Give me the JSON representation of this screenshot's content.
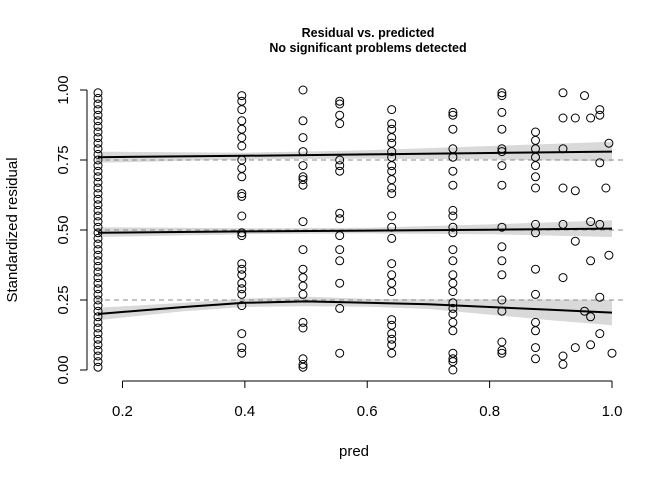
{
  "chart_data": {
    "type": "scatter",
    "title": "Residual vs. predicted",
    "subtitle": "No significant problems detected",
    "xlabel": "pred",
    "ylabel": "Standardized residual",
    "xlim": [
      0.16,
      1.0
    ],
    "ylim": [
      0.0,
      1.0
    ],
    "x_ticks": [
      0.2,
      0.4,
      0.6,
      0.8,
      1.0
    ],
    "x_tick_labels": [
      "0.2",
      "0.4",
      "0.6",
      "0.8",
      "1.0"
    ],
    "y_ticks": [
      0.0,
      0.25,
      0.5,
      0.75,
      1.0
    ],
    "y_tick_labels": [
      "0.00",
      "0.25",
      "0.50",
      "0.75",
      "1.00"
    ],
    "reference_lines": [
      0.25,
      0.5,
      0.75
    ],
    "quantile_fits": [
      {
        "name": "q0.25",
        "x": [
          0.16,
          0.3,
          0.4,
          0.5,
          0.6,
          0.7,
          0.8,
          0.9,
          1.0
        ],
        "y": [
          0.2,
          0.225,
          0.24,
          0.245,
          0.24,
          0.235,
          0.225,
          0.215,
          0.205
        ],
        "lower": [
          0.178,
          0.21,
          0.225,
          0.228,
          0.226,
          0.218,
          0.198,
          0.178,
          0.16
        ],
        "upper": [
          0.222,
          0.24,
          0.255,
          0.262,
          0.254,
          0.252,
          0.252,
          0.252,
          0.25
        ]
      },
      {
        "name": "q0.50",
        "x": [
          0.16,
          0.4,
          0.6,
          0.8,
          1.0
        ],
        "y": [
          0.49,
          0.495,
          0.498,
          0.501,
          0.505
        ],
        "lower": [
          0.475,
          0.485,
          0.488,
          0.485,
          0.475
        ],
        "upper": [
          0.51,
          0.506,
          0.508,
          0.52,
          0.535
        ]
      },
      {
        "name": "q0.75",
        "x": [
          0.16,
          0.4,
          0.6,
          0.8,
          1.0
        ],
        "y": [
          0.76,
          0.765,
          0.77,
          0.775,
          0.78
        ],
        "lower": [
          0.74,
          0.752,
          0.755,
          0.752,
          0.745
        ],
        "upper": [
          0.78,
          0.776,
          0.785,
          0.8,
          0.815
        ]
      }
    ],
    "points": [
      {
        "x": 0.16,
        "y": 0.99
      },
      {
        "x": 0.16,
        "y": 0.97
      },
      {
        "x": 0.16,
        "y": 0.95
      },
      {
        "x": 0.16,
        "y": 0.93
      },
      {
        "x": 0.16,
        "y": 0.91
      },
      {
        "x": 0.16,
        "y": 0.89
      },
      {
        "x": 0.16,
        "y": 0.87
      },
      {
        "x": 0.16,
        "y": 0.85
      },
      {
        "x": 0.16,
        "y": 0.83
      },
      {
        "x": 0.16,
        "y": 0.81
      },
      {
        "x": 0.16,
        "y": 0.79
      },
      {
        "x": 0.16,
        "y": 0.77
      },
      {
        "x": 0.16,
        "y": 0.75
      },
      {
        "x": 0.16,
        "y": 0.73
      },
      {
        "x": 0.16,
        "y": 0.71
      },
      {
        "x": 0.16,
        "y": 0.69
      },
      {
        "x": 0.16,
        "y": 0.67
      },
      {
        "x": 0.16,
        "y": 0.65
      },
      {
        "x": 0.16,
        "y": 0.63
      },
      {
        "x": 0.16,
        "y": 0.61
      },
      {
        "x": 0.16,
        "y": 0.59
      },
      {
        "x": 0.16,
        "y": 0.57
      },
      {
        "x": 0.16,
        "y": 0.55
      },
      {
        "x": 0.16,
        "y": 0.53
      },
      {
        "x": 0.16,
        "y": 0.51
      },
      {
        "x": 0.16,
        "y": 0.49
      },
      {
        "x": 0.16,
        "y": 0.47
      },
      {
        "x": 0.16,
        "y": 0.45
      },
      {
        "x": 0.16,
        "y": 0.43
      },
      {
        "x": 0.16,
        "y": 0.41
      },
      {
        "x": 0.16,
        "y": 0.39
      },
      {
        "x": 0.16,
        "y": 0.37
      },
      {
        "x": 0.16,
        "y": 0.35
      },
      {
        "x": 0.16,
        "y": 0.33
      },
      {
        "x": 0.16,
        "y": 0.31
      },
      {
        "x": 0.16,
        "y": 0.29
      },
      {
        "x": 0.16,
        "y": 0.27
      },
      {
        "x": 0.16,
        "y": 0.25
      },
      {
        "x": 0.16,
        "y": 0.23
      },
      {
        "x": 0.16,
        "y": 0.21
      },
      {
        "x": 0.16,
        "y": 0.19
      },
      {
        "x": 0.16,
        "y": 0.17
      },
      {
        "x": 0.16,
        "y": 0.15
      },
      {
        "x": 0.16,
        "y": 0.13
      },
      {
        "x": 0.16,
        "y": 0.11
      },
      {
        "x": 0.16,
        "y": 0.09
      },
      {
        "x": 0.16,
        "y": 0.07
      },
      {
        "x": 0.16,
        "y": 0.05
      },
      {
        "x": 0.16,
        "y": 0.03
      },
      {
        "x": 0.16,
        "y": 0.01
      },
      {
        "x": 0.395,
        "y": 0.98
      },
      {
        "x": 0.395,
        "y": 0.96
      },
      {
        "x": 0.395,
        "y": 0.93
      },
      {
        "x": 0.395,
        "y": 0.89
      },
      {
        "x": 0.395,
        "y": 0.86
      },
      {
        "x": 0.395,
        "y": 0.83
      },
      {
        "x": 0.395,
        "y": 0.8
      },
      {
        "x": 0.395,
        "y": 0.75
      },
      {
        "x": 0.395,
        "y": 0.72
      },
      {
        "x": 0.395,
        "y": 0.69
      },
      {
        "x": 0.395,
        "y": 0.63
      },
      {
        "x": 0.395,
        "y": 0.62
      },
      {
        "x": 0.395,
        "y": 0.55
      },
      {
        "x": 0.395,
        "y": 0.49
      },
      {
        "x": 0.395,
        "y": 0.48
      },
      {
        "x": 0.395,
        "y": 0.38
      },
      {
        "x": 0.395,
        "y": 0.36
      },
      {
        "x": 0.395,
        "y": 0.34
      },
      {
        "x": 0.395,
        "y": 0.31
      },
      {
        "x": 0.395,
        "y": 0.29
      },
      {
        "x": 0.395,
        "y": 0.27
      },
      {
        "x": 0.395,
        "y": 0.23
      },
      {
        "x": 0.395,
        "y": 0.13
      },
      {
        "x": 0.395,
        "y": 0.08
      },
      {
        "x": 0.395,
        "y": 0.06
      },
      {
        "x": 0.495,
        "y": 1.0
      },
      {
        "x": 0.495,
        "y": 0.89
      },
      {
        "x": 0.495,
        "y": 0.83
      },
      {
        "x": 0.495,
        "y": 0.78
      },
      {
        "x": 0.495,
        "y": 0.73
      },
      {
        "x": 0.495,
        "y": 0.69
      },
      {
        "x": 0.495,
        "y": 0.68
      },
      {
        "x": 0.495,
        "y": 0.66
      },
      {
        "x": 0.495,
        "y": 0.53
      },
      {
        "x": 0.495,
        "y": 0.43
      },
      {
        "x": 0.495,
        "y": 0.36
      },
      {
        "x": 0.495,
        "y": 0.33
      },
      {
        "x": 0.495,
        "y": 0.3
      },
      {
        "x": 0.495,
        "y": 0.27
      },
      {
        "x": 0.495,
        "y": 0.17
      },
      {
        "x": 0.495,
        "y": 0.15
      },
      {
        "x": 0.495,
        "y": 0.04
      },
      {
        "x": 0.495,
        "y": 0.02
      },
      {
        "x": 0.495,
        "y": 0.01
      },
      {
        "x": 0.555,
        "y": 0.96
      },
      {
        "x": 0.555,
        "y": 0.95
      },
      {
        "x": 0.555,
        "y": 0.91
      },
      {
        "x": 0.555,
        "y": 0.88
      },
      {
        "x": 0.555,
        "y": 0.75
      },
      {
        "x": 0.555,
        "y": 0.73
      },
      {
        "x": 0.555,
        "y": 0.71
      },
      {
        "x": 0.555,
        "y": 0.56
      },
      {
        "x": 0.555,
        "y": 0.54
      },
      {
        "x": 0.555,
        "y": 0.48
      },
      {
        "x": 0.555,
        "y": 0.43
      },
      {
        "x": 0.555,
        "y": 0.39
      },
      {
        "x": 0.555,
        "y": 0.31
      },
      {
        "x": 0.555,
        "y": 0.22
      },
      {
        "x": 0.555,
        "y": 0.06
      },
      {
        "x": 0.64,
        "y": 0.93
      },
      {
        "x": 0.64,
        "y": 0.88
      },
      {
        "x": 0.64,
        "y": 0.86
      },
      {
        "x": 0.64,
        "y": 0.83
      },
      {
        "x": 0.64,
        "y": 0.81
      },
      {
        "x": 0.64,
        "y": 0.78
      },
      {
        "x": 0.64,
        "y": 0.76
      },
      {
        "x": 0.64,
        "y": 0.73
      },
      {
        "x": 0.64,
        "y": 0.71
      },
      {
        "x": 0.64,
        "y": 0.68
      },
      {
        "x": 0.64,
        "y": 0.65
      },
      {
        "x": 0.64,
        "y": 0.63
      },
      {
        "x": 0.64,
        "y": 0.55
      },
      {
        "x": 0.64,
        "y": 0.51
      },
      {
        "x": 0.64,
        "y": 0.47
      },
      {
        "x": 0.64,
        "y": 0.38
      },
      {
        "x": 0.64,
        "y": 0.34
      },
      {
        "x": 0.64,
        "y": 0.31
      },
      {
        "x": 0.64,
        "y": 0.28
      },
      {
        "x": 0.64,
        "y": 0.18
      },
      {
        "x": 0.64,
        "y": 0.16
      },
      {
        "x": 0.64,
        "y": 0.13
      },
      {
        "x": 0.64,
        "y": 0.11
      },
      {
        "x": 0.64,
        "y": 0.09
      },
      {
        "x": 0.64,
        "y": 0.06
      },
      {
        "x": 0.74,
        "y": 0.92
      },
      {
        "x": 0.74,
        "y": 0.91
      },
      {
        "x": 0.74,
        "y": 0.86
      },
      {
        "x": 0.74,
        "y": 0.79
      },
      {
        "x": 0.74,
        "y": 0.76
      },
      {
        "x": 0.74,
        "y": 0.71
      },
      {
        "x": 0.74,
        "y": 0.66
      },
      {
        "x": 0.74,
        "y": 0.57
      },
      {
        "x": 0.74,
        "y": 0.55
      },
      {
        "x": 0.74,
        "y": 0.51
      },
      {
        "x": 0.74,
        "y": 0.49
      },
      {
        "x": 0.74,
        "y": 0.43
      },
      {
        "x": 0.74,
        "y": 0.39
      },
      {
        "x": 0.74,
        "y": 0.34
      },
      {
        "x": 0.74,
        "y": 0.31
      },
      {
        "x": 0.74,
        "y": 0.28
      },
      {
        "x": 0.74,
        "y": 0.24
      },
      {
        "x": 0.74,
        "y": 0.22
      },
      {
        "x": 0.74,
        "y": 0.2
      },
      {
        "x": 0.74,
        "y": 0.17
      },
      {
        "x": 0.74,
        "y": 0.14
      },
      {
        "x": 0.74,
        "y": 0.06
      },
      {
        "x": 0.74,
        "y": 0.04
      },
      {
        "x": 0.74,
        "y": 0.03
      },
      {
        "x": 0.74,
        "y": 0.0
      },
      {
        "x": 0.82,
        "y": 0.99
      },
      {
        "x": 0.82,
        "y": 0.98
      },
      {
        "x": 0.82,
        "y": 0.92
      },
      {
        "x": 0.82,
        "y": 0.86
      },
      {
        "x": 0.82,
        "y": 0.79
      },
      {
        "x": 0.82,
        "y": 0.78
      },
      {
        "x": 0.82,
        "y": 0.73
      },
      {
        "x": 0.82,
        "y": 0.66
      },
      {
        "x": 0.82,
        "y": 0.51
      },
      {
        "x": 0.82,
        "y": 0.44
      },
      {
        "x": 0.82,
        "y": 0.39
      },
      {
        "x": 0.82,
        "y": 0.34
      },
      {
        "x": 0.82,
        "y": 0.25
      },
      {
        "x": 0.82,
        "y": 0.21
      },
      {
        "x": 0.82,
        "y": 0.1
      },
      {
        "x": 0.82,
        "y": 0.07
      },
      {
        "x": 0.82,
        "y": 0.06
      },
      {
        "x": 0.875,
        "y": 0.85
      },
      {
        "x": 0.875,
        "y": 0.82
      },
      {
        "x": 0.875,
        "y": 0.79
      },
      {
        "x": 0.875,
        "y": 0.76
      },
      {
        "x": 0.875,
        "y": 0.73
      },
      {
        "x": 0.875,
        "y": 0.69
      },
      {
        "x": 0.875,
        "y": 0.65
      },
      {
        "x": 0.875,
        "y": 0.52
      },
      {
        "x": 0.875,
        "y": 0.49
      },
      {
        "x": 0.875,
        "y": 0.36
      },
      {
        "x": 0.875,
        "y": 0.27
      },
      {
        "x": 0.875,
        "y": 0.17
      },
      {
        "x": 0.875,
        "y": 0.14
      },
      {
        "x": 0.875,
        "y": 0.08
      },
      {
        "x": 0.875,
        "y": 0.04
      },
      {
        "x": 0.92,
        "y": 0.99
      },
      {
        "x": 0.92,
        "y": 0.9
      },
      {
        "x": 0.92,
        "y": 0.79
      },
      {
        "x": 0.92,
        "y": 0.65
      },
      {
        "x": 0.92,
        "y": 0.52
      },
      {
        "x": 0.92,
        "y": 0.33
      },
      {
        "x": 0.92,
        "y": 0.05
      },
      {
        "x": 0.92,
        "y": 0.02
      },
      {
        "x": 0.94,
        "y": 0.9
      },
      {
        "x": 0.94,
        "y": 0.64
      },
      {
        "x": 0.94,
        "y": 0.46
      },
      {
        "x": 0.94,
        "y": 0.08
      },
      {
        "x": 0.955,
        "y": 0.98
      },
      {
        "x": 0.955,
        "y": 0.21
      },
      {
        "x": 0.965,
        "y": 0.9
      },
      {
        "x": 0.965,
        "y": 0.53
      },
      {
        "x": 0.965,
        "y": 0.39
      },
      {
        "x": 0.965,
        "y": 0.19
      },
      {
        "x": 0.965,
        "y": 0.09
      },
      {
        "x": 0.98,
        "y": 0.93
      },
      {
        "x": 0.98,
        "y": 0.91
      },
      {
        "x": 0.98,
        "y": 0.74
      },
      {
        "x": 0.98,
        "y": 0.52
      },
      {
        "x": 0.98,
        "y": 0.26
      },
      {
        "x": 0.98,
        "y": 0.13
      },
      {
        "x": 0.99,
        "y": 0.65
      },
      {
        "x": 0.995,
        "y": 0.81
      },
      {
        "x": 0.995,
        "y": 0.41
      },
      {
        "x": 1.0,
        "y": 0.06
      }
    ]
  }
}
